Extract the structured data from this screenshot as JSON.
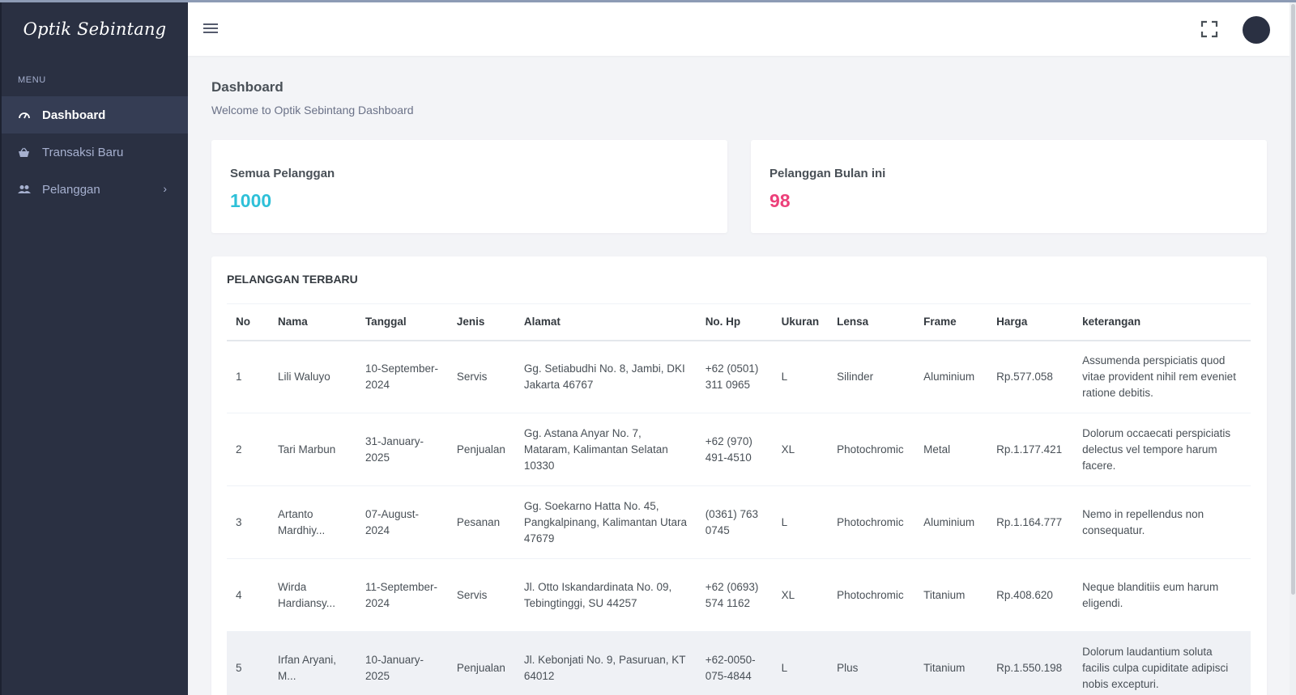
{
  "brand": "Optik Sebintang",
  "sidebar": {
    "menu_title": "MENU",
    "items": [
      {
        "label": "Dashboard",
        "icon": "speedometer-icon"
      },
      {
        "label": "Transaksi Baru",
        "icon": "basket-icon"
      },
      {
        "label": "Pelanggan",
        "icon": "users-icon",
        "arrow": "›"
      }
    ]
  },
  "page": {
    "title": "Dashboard",
    "subtitle": "Welcome to Optik Sebintang Dashboard"
  },
  "stats": [
    {
      "label": "Semua Pelanggan",
      "value": "1000",
      "color": "#2ec0d8"
    },
    {
      "label": "Pelanggan Bulan ini",
      "value": "98",
      "color": "#ec407a"
    }
  ],
  "table": {
    "title": "PELANGGAN TERBARU",
    "headers": [
      "No",
      "Nama",
      "Tanggal",
      "Jenis",
      "Alamat",
      "No. Hp",
      "Ukuran",
      "Lensa",
      "Frame",
      "Harga",
      "keterangan"
    ],
    "rows": [
      [
        "1",
        "Lili Waluyo",
        "10-September-2024",
        "Servis",
        "Gg. Setiabudhi No. 8, Jambi, DKI Jakarta 46767",
        "+62 (0501) 311 0965",
        "L",
        "Silinder",
        "Aluminium",
        "Rp.577.058",
        "Assumenda perspiciatis quod vitae provident nihil rem eveniet ratione debitis."
      ],
      [
        "2",
        "Tari Marbun",
        "31-January-2025",
        "Penjualan",
        "Gg. Astana Anyar No. 7, Mataram, Kalimantan Selatan 10330",
        "+62 (970) 491-4510",
        "XL",
        "Photochromic",
        "Metal",
        "Rp.1.177.421",
        "Dolorum occaecati perspiciatis delectus vel tempore harum facere."
      ],
      [
        "3",
        "Artanto Mardhiy...",
        "07-August-2024",
        "Pesanan",
        "Gg. Soekarno Hatta No. 45, Pangkalpinang, Kalimantan Utara 47679",
        "(0361) 763 0745",
        "L",
        "Photochromic",
        "Aluminium",
        "Rp.1.164.777",
        "Nemo in repellendus non consequatur."
      ],
      [
        "4",
        "Wirda Hardiansy...",
        "11-September-2024",
        "Servis",
        "Jl. Otto Iskandardinata No. 09, Tebingtinggi, SU 44257",
        "+62 (0693) 574 1162",
        "XL",
        "Photochromic",
        "Titanium",
        "Rp.408.620",
        "Neque blanditiis eum harum eligendi."
      ],
      [
        "5",
        "Irfan Aryani, M...",
        "10-January-2025",
        "Penjualan",
        "Jl. Kebonjati No. 9, Pasuruan, KT 64012",
        "+62-0050-075-4844",
        "L",
        "Plus",
        "Titanium",
        "Rp.1.550.198",
        "Dolorum laudantium soluta facilis culpa cupiditate adipisci nobis excepturi."
      ]
    ]
  }
}
